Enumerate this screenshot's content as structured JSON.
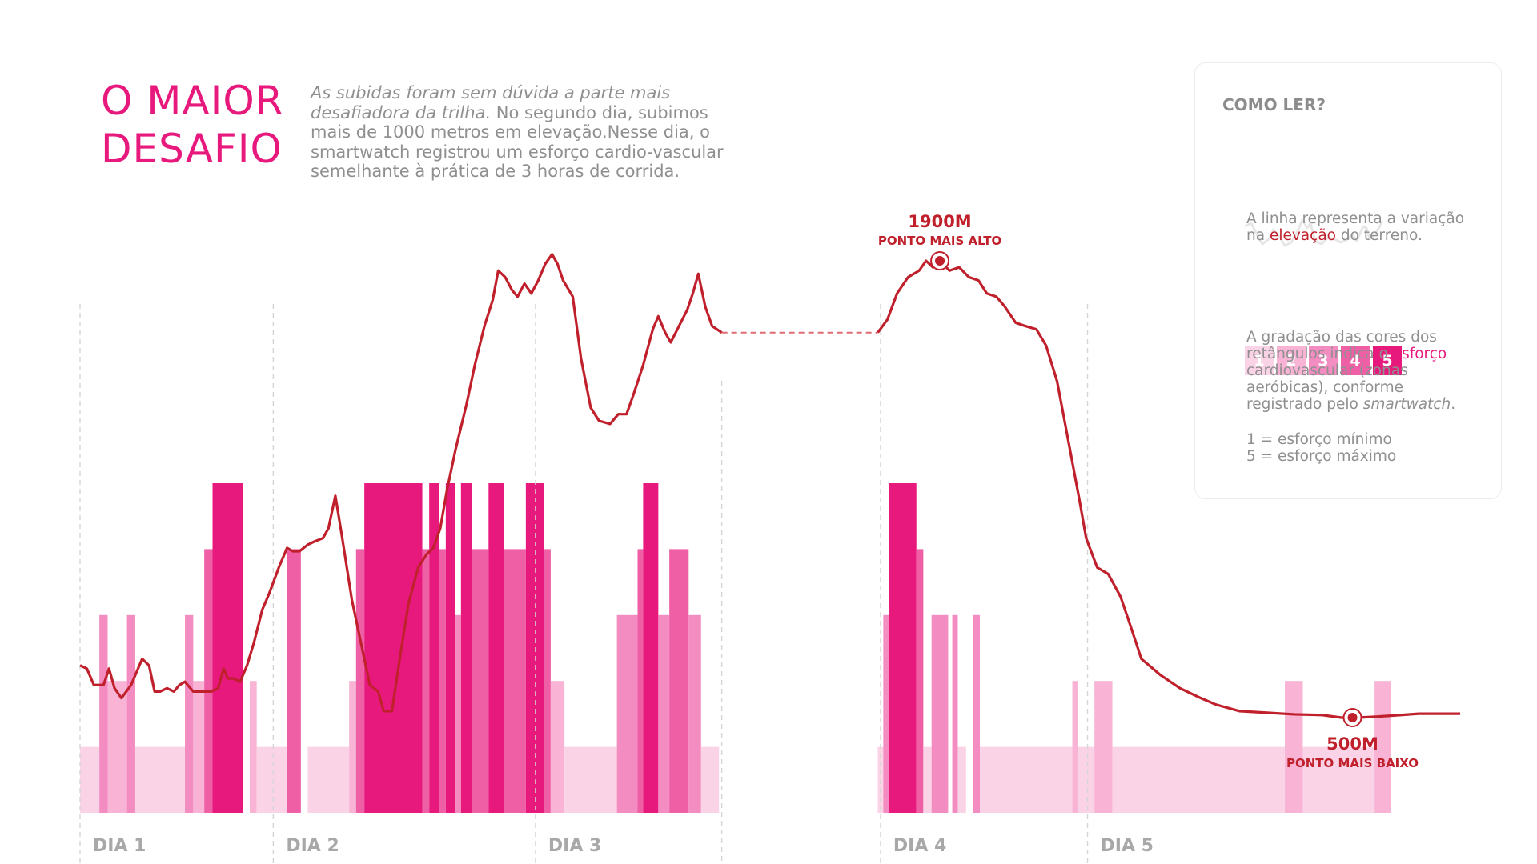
{
  "header": {
    "title_line1": "O MAIOR",
    "title_line2": "DESAFIO",
    "intro_italic": "As subidas foram sem dúvida a parte mais desafiadora da trilha.",
    "intro_rest": " No segundo dia, subimos mais de 1000 metros em elevação.Nesse dia, o smartwatch registrou um esforço cardio-vascular semelhante à prática de 3 horas de corrida."
  },
  "legend": {
    "title": "COMO LER?",
    "line_text_a": "A linha representa a variação na ",
    "line_text_hl": "elevação",
    "line_text_b": " do terreno.",
    "zones": [
      "1",
      "2",
      "3",
      "4",
      "5"
    ],
    "zone_colors": [
      "#fbd3e6",
      "#f8b3d5",
      "#f38cc0",
      "#ee5fa6",
      "#e8197d"
    ],
    "grad_text_a": "A gradação das cores dos retângulos indica o ",
    "grad_text_hl": "esforço",
    "grad_text_b": " cardiovascular (zonas aeróbicas), conforme registrado pelo ",
    "grad_text_em": "smartwatch",
    "grad_text_c": ".",
    "scale_min": "1 = esforço mínimo",
    "scale_max": "5 = esforço máximo"
  },
  "colors": {
    "line": "#c0202b",
    "gap": "#e06a74",
    "divider": "#d5d5d5",
    "day_label": "#a8a8a8"
  },
  "chart_data": {
    "type": "line",
    "title": "O MAIOR DESAFIO",
    "xlabel": "",
    "ylabel": "",
    "x_unit": "distance index along trail (0-100)",
    "days": [
      {
        "label": "DIA 1",
        "start": 0
      },
      {
        "label": "DIA 2",
        "start": 14
      },
      {
        "label": "DIA 3",
        "start": 33
      },
      {
        "label": "DIA 4",
        "start": 58
      },
      {
        "label": "DIA 5",
        "start": 73
      }
    ],
    "gap": {
      "from": 46.5,
      "to": 57.8
    },
    "annotations": [
      {
        "value": "1900M",
        "label": "PONTO MAIS ALTO",
        "x": 62.3,
        "y": 1900
      },
      {
        "value": "500M",
        "label": "PONTO MAIS BAIXO",
        "x": 92.2,
        "y": 500
      }
    ],
    "elevation": [
      [
        0,
        660
      ],
      [
        0.5,
        650
      ],
      [
        1,
        600
      ],
      [
        1.7,
        600
      ],
      [
        2.1,
        650
      ],
      [
        2.5,
        590
      ],
      [
        3,
        560
      ],
      [
        3.7,
        600
      ],
      [
        4.1,
        640
      ],
      [
        4.5,
        680
      ],
      [
        5,
        660
      ],
      [
        5.4,
        580
      ],
      [
        5.8,
        580
      ],
      [
        6.3,
        590
      ],
      [
        6.8,
        580
      ],
      [
        7.2,
        600
      ],
      [
        7.6,
        610
      ],
      [
        8.2,
        580
      ],
      [
        9,
        580
      ],
      [
        9.5,
        580
      ],
      [
        10,
        590
      ],
      [
        10.4,
        650
      ],
      [
        10.7,
        620
      ],
      [
        11.1,
        620
      ],
      [
        11.6,
        610
      ],
      [
        12.1,
        660
      ],
      [
        12.6,
        730
      ],
      [
        13.2,
        830
      ],
      [
        13.7,
        880
      ],
      [
        14.4,
        960
      ],
      [
        15,
        1020
      ],
      [
        15.4,
        1010
      ],
      [
        15.9,
        1010
      ],
      [
        16.5,
        1030
      ],
      [
        17,
        1040
      ],
      [
        17.6,
        1050
      ],
      [
        18,
        1080
      ],
      [
        18.5,
        1180
      ],
      [
        19,
        1050
      ],
      [
        19.7,
        860
      ],
      [
        20.4,
        720
      ],
      [
        21,
        600
      ],
      [
        21.6,
        580
      ],
      [
        22,
        520
      ],
      [
        22.6,
        520
      ],
      [
        23.2,
        690
      ],
      [
        23.8,
        850
      ],
      [
        24.5,
        960
      ],
      [
        25.1,
        1000
      ],
      [
        25.6,
        1020
      ],
      [
        26.1,
        1080
      ],
      [
        26.6,
        1200
      ],
      [
        27.2,
        1320
      ],
      [
        28,
        1460
      ],
      [
        28.6,
        1580
      ],
      [
        29.3,
        1700
      ],
      [
        29.9,
        1780
      ],
      [
        30.3,
        1870
      ],
      [
        30.8,
        1850
      ],
      [
        31.3,
        1810
      ],
      [
        31.7,
        1790
      ],
      [
        32.2,
        1830
      ],
      [
        32.7,
        1800
      ],
      [
        33.2,
        1840
      ],
      [
        33.7,
        1890
      ],
      [
        34.2,
        1920
      ],
      [
        34.6,
        1890
      ],
      [
        35,
        1840
      ],
      [
        35.7,
        1790
      ],
      [
        36.3,
        1600
      ],
      [
        37,
        1450
      ],
      [
        37.6,
        1410
      ],
      [
        38.4,
        1400
      ],
      [
        39,
        1430
      ],
      [
        39.6,
        1430
      ],
      [
        40.1,
        1490
      ],
      [
        40.8,
        1580
      ],
      [
        41.5,
        1690
      ],
      [
        41.9,
        1730
      ],
      [
        42.4,
        1680
      ],
      [
        42.8,
        1650
      ],
      [
        43.4,
        1700
      ],
      [
        44,
        1750
      ],
      [
        44.4,
        1800
      ],
      [
        44.8,
        1860
      ],
      [
        45.3,
        1760
      ],
      [
        45.8,
        1700
      ],
      [
        46.5,
        1680
      ],
      [
        57.8,
        1680
      ],
      [
        58.5,
        1720
      ],
      [
        59.2,
        1800
      ],
      [
        60,
        1850
      ],
      [
        60.8,
        1870
      ],
      [
        61.3,
        1900
      ],
      [
        61.8,
        1880
      ],
      [
        62.3,
        1900
      ],
      [
        63,
        1870
      ],
      [
        63.7,
        1880
      ],
      [
        64.4,
        1850
      ],
      [
        65.1,
        1840
      ],
      [
        65.7,
        1800
      ],
      [
        66.4,
        1790
      ],
      [
        67,
        1760
      ],
      [
        67.8,
        1710
      ],
      [
        68.5,
        1700
      ],
      [
        69.3,
        1690
      ],
      [
        70,
        1640
      ],
      [
        70.8,
        1530
      ],
      [
        71.6,
        1350
      ],
      [
        72.4,
        1170
      ],
      [
        72.9,
        1050
      ],
      [
        73.7,
        960
      ],
      [
        74.5,
        940
      ],
      [
        75.4,
        870
      ],
      [
        76.2,
        770
      ],
      [
        76.9,
        680
      ],
      [
        78.3,
        630
      ],
      [
        79.7,
        590
      ],
      [
        81.2,
        560
      ],
      [
        82.3,
        540
      ],
      [
        84,
        520
      ],
      [
        86,
        515
      ],
      [
        88,
        510
      ],
      [
        90,
        508
      ],
      [
        91.4,
        500
      ],
      [
        92.6,
        500
      ],
      [
        94,
        503
      ],
      [
        95.7,
        508
      ],
      [
        97,
        512
      ],
      [
        100,
        512
      ]
    ],
    "zones": [
      {
        "x0": 0,
        "x1": 1.4,
        "zone": 1
      },
      {
        "x0": 1.4,
        "x1": 2,
        "zone": 3
      },
      {
        "x0": 2,
        "x1": 3.4,
        "zone": 2
      },
      {
        "x0": 3.4,
        "x1": 4,
        "zone": 3
      },
      {
        "x0": 4,
        "x1": 7.6,
        "zone": 1
      },
      {
        "x0": 7.6,
        "x1": 8.2,
        "zone": 3
      },
      {
        "x0": 8.2,
        "x1": 9,
        "zone": 2
      },
      {
        "x0": 9,
        "x1": 9.6,
        "zone": 4
      },
      {
        "x0": 9.6,
        "x1": 11.8,
        "zone": 5
      },
      {
        "x0": 12.3,
        "x1": 12.8,
        "zone": 2
      },
      {
        "x0": 12.8,
        "x1": 15,
        "zone": 1
      },
      {
        "x0": 15,
        "x1": 16,
        "zone": 4
      },
      {
        "x0": 16.5,
        "x1": 19.5,
        "zone": 1
      },
      {
        "x0": 19.5,
        "x1": 20,
        "zone": 2
      },
      {
        "x0": 20,
        "x1": 20.6,
        "zone": 4
      },
      {
        "x0": 20.6,
        "x1": 24.8,
        "zone": 5
      },
      {
        "x0": 24.8,
        "x1": 25.3,
        "zone": 4
      },
      {
        "x0": 25.3,
        "x1": 26,
        "zone": 5
      },
      {
        "x0": 26,
        "x1": 26.5,
        "zone": 4
      },
      {
        "x0": 26.5,
        "x1": 27.2,
        "zone": 5
      },
      {
        "x0": 27.2,
        "x1": 27.6,
        "zone": 3
      },
      {
        "x0": 27.6,
        "x1": 28.4,
        "zone": 5
      },
      {
        "x0": 28.4,
        "x1": 29.6,
        "zone": 4
      },
      {
        "x0": 29.6,
        "x1": 30.7,
        "zone": 5
      },
      {
        "x0": 30.7,
        "x1": 32.3,
        "zone": 4
      },
      {
        "x0": 32.3,
        "x1": 33.6,
        "zone": 5
      },
      {
        "x0": 33.6,
        "x1": 34.1,
        "zone": 4
      },
      {
        "x0": 34.1,
        "x1": 35.1,
        "zone": 2
      },
      {
        "x0": 35.1,
        "x1": 38.9,
        "zone": 1
      },
      {
        "x0": 38.9,
        "x1": 40.4,
        "zone": 3
      },
      {
        "x0": 40.4,
        "x1": 40.8,
        "zone": 4
      },
      {
        "x0": 40.8,
        "x1": 41.9,
        "zone": 5
      },
      {
        "x0": 41.9,
        "x1": 42.7,
        "zone": 3
      },
      {
        "x0": 42.7,
        "x1": 44.1,
        "zone": 4
      },
      {
        "x0": 44.1,
        "x1": 45,
        "zone": 3
      },
      {
        "x0": 45,
        "x1": 46.3,
        "zone": 1
      },
      {
        "x0": 57.8,
        "x1": 58.2,
        "zone": 1
      },
      {
        "x0": 58.2,
        "x1": 58.6,
        "zone": 3
      },
      {
        "x0": 58.6,
        "x1": 60.6,
        "zone": 5
      },
      {
        "x0": 60.6,
        "x1": 61.1,
        "zone": 4
      },
      {
        "x0": 61.1,
        "x1": 61.7,
        "zone": 1
      },
      {
        "x0": 61.7,
        "x1": 62.9,
        "zone": 3
      },
      {
        "x0": 63.2,
        "x1": 63.6,
        "zone": 3
      },
      {
        "x0": 63.6,
        "x1": 64.2,
        "zone": 1
      },
      {
        "x0": 64.7,
        "x1": 65.2,
        "zone": 3
      },
      {
        "x0": 65.2,
        "x1": 66.3,
        "zone": 1
      },
      {
        "x0": 66.3,
        "x1": 71.9,
        "zone": 1
      },
      {
        "x0": 71.9,
        "x1": 72.3,
        "zone": 2
      },
      {
        "x0": 72.3,
        "x1": 73.5,
        "zone": 1
      },
      {
        "x0": 73.5,
        "x1": 74.8,
        "zone": 2
      },
      {
        "x0": 74.8,
        "x1": 87.3,
        "zone": 1
      },
      {
        "x0": 87.3,
        "x1": 88.6,
        "zone": 2
      },
      {
        "x0": 88.6,
        "x1": 93.8,
        "zone": 1
      },
      {
        "x0": 93.8,
        "x1": 95,
        "zone": 2
      }
    ]
  }
}
